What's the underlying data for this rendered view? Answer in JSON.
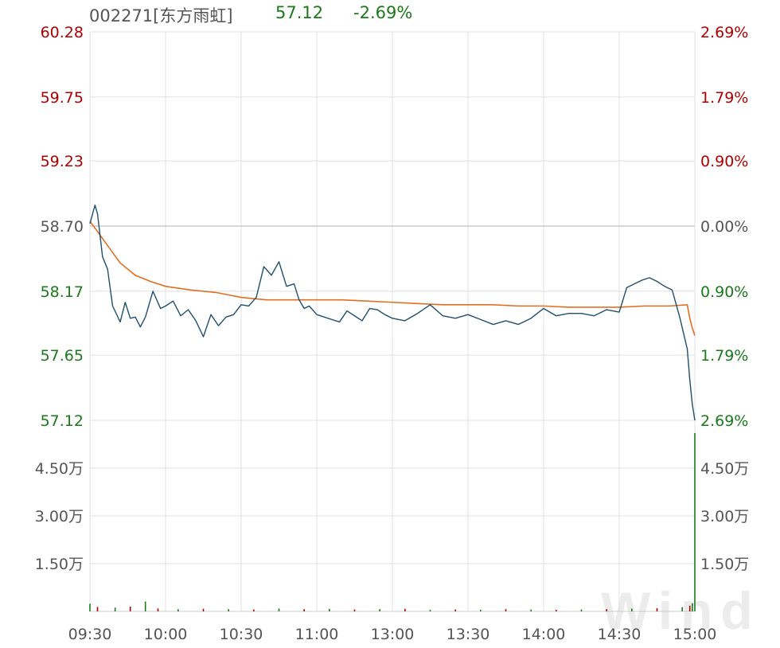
{
  "header": {
    "stock": "002271[东方雨虹]",
    "price": "57.12",
    "change_pct": "-2.69%"
  },
  "colors": {
    "up": "#b00000",
    "down": "#1a7a1a",
    "neutral": "#555555",
    "price_line": "#1f4f6b",
    "avg_line": "#e07020",
    "grid": "#e0e0e0",
    "baseline": "#c8c8c8"
  },
  "watermark": "Wind",
  "chart_data": {
    "type": "line",
    "title": "",
    "x_ticks": [
      "09:30",
      "10:00",
      "10:30",
      "11:00",
      "13:00",
      "13:30",
      "14:00",
      "14:30",
      "15:00"
    ],
    "price_axis": {
      "ticks": [
        "60.28",
        "59.75",
        "59.23",
        "58.70",
        "58.17",
        "57.65",
        "57.12"
      ],
      "tick_values": [
        60.28,
        59.75,
        59.23,
        58.7,
        58.17,
        57.65,
        57.12
      ],
      "ylim": [
        57.12,
        60.28
      ],
      "prev_close": 58.7
    },
    "pct_axis": {
      "ticks": [
        "2.69%",
        "1.79%",
        "0.90%",
        "0.00%",
        "0.90%",
        "1.79%",
        "2.69%"
      ]
    },
    "volume_axis": {
      "ticks": [
        "4.50万",
        "3.00万",
        "1.50万"
      ],
      "tick_values": [
        45000,
        30000,
        15000
      ],
      "ylim": [
        0,
        60000
      ]
    },
    "series": [
      {
        "key": "price",
        "x": [
          "09:30",
          "09:32",
          "09:33",
          "09:35",
          "09:37",
          "09:39",
          "09:42",
          "09:44",
          "09:46",
          "09:48",
          "09:50",
          "09:52",
          "09:55",
          "09:58",
          "10:00",
          "10:03",
          "10:06",
          "10:09",
          "10:12",
          "10:15",
          "10:18",
          "10:21",
          "10:24",
          "10:27",
          "10:30",
          "10:33",
          "10:36",
          "10:39",
          "10:42",
          "10:45",
          "10:48",
          "10:51",
          "10:53",
          "10:55",
          "10:57",
          "11:00",
          "11:03",
          "11:06",
          "11:09",
          "11:12",
          "11:15",
          "11:18",
          "11:21",
          "11:24",
          "11:27",
          "11:30",
          "13:05",
          "13:10",
          "13:15",
          "13:20",
          "13:25",
          "13:30",
          "13:35",
          "13:40",
          "13:45",
          "13:50",
          "13:55",
          "14:00",
          "14:05",
          "14:10",
          "14:15",
          "14:20",
          "14:25",
          "14:30",
          "14:33",
          "14:36",
          "14:39",
          "14:42",
          "14:45",
          "14:48",
          "14:51",
          "14:54",
          "14:57",
          "14:58",
          "14:59",
          "15:00"
        ],
        "y": [
          58.72,
          58.87,
          58.8,
          58.45,
          58.35,
          58.05,
          57.92,
          58.08,
          57.95,
          57.96,
          57.88,
          57.96,
          58.17,
          58.03,
          58.05,
          58.09,
          57.97,
          58.02,
          57.93,
          57.8,
          57.98,
          57.89,
          57.96,
          57.98,
          58.06,
          58.05,
          58.12,
          58.37,
          58.3,
          58.41,
          58.21,
          58.23,
          58.1,
          58.03,
          58.05,
          57.98,
          57.96,
          57.94,
          57.92,
          58.01,
          57.97,
          57.93,
          58.03,
          58.02,
          57.98,
          57.95,
          57.93,
          57.99,
          58.06,
          57.97,
          57.95,
          57.98,
          57.94,
          57.9,
          57.93,
          57.9,
          57.95,
          58.03,
          57.97,
          57.99,
          57.99,
          57.97,
          58.02,
          58.0,
          58.2,
          58.23,
          58.26,
          58.28,
          58.25,
          58.21,
          58.18,
          57.96,
          57.7,
          57.45,
          57.25,
          57.12
        ]
      },
      {
        "key": "average",
        "x": [
          "09:30",
          "09:36",
          "09:42",
          "09:48",
          "09:54",
          "10:00",
          "10:10",
          "10:20",
          "10:30",
          "10:40",
          "10:50",
          "11:00",
          "11:10",
          "11:20",
          "11:30",
          "13:10",
          "13:20",
          "13:30",
          "13:40",
          "13:50",
          "14:00",
          "14:10",
          "14:20",
          "14:30",
          "14:40",
          "14:50",
          "14:57",
          "14:58",
          "14:59",
          "15:00"
        ],
        "y": [
          58.74,
          58.57,
          58.4,
          58.3,
          58.25,
          58.21,
          58.18,
          58.16,
          58.12,
          58.1,
          58.1,
          58.1,
          58.1,
          58.09,
          58.08,
          58.07,
          58.06,
          58.06,
          58.06,
          58.05,
          58.05,
          58.04,
          58.04,
          58.04,
          58.05,
          58.05,
          58.06,
          57.95,
          57.87,
          57.81
        ]
      },
      {
        "key": "volume",
        "x": [
          "09:30",
          "09:33",
          "09:40",
          "09:46",
          "09:52",
          "09:57",
          "10:05",
          "10:15",
          "10:25",
          "10:35",
          "10:45",
          "10:55",
          "11:05",
          "11:15",
          "11:25",
          "13:05",
          "13:15",
          "13:25",
          "13:35",
          "13:45",
          "13:55",
          "14:05",
          "14:15",
          "14:25",
          "14:35",
          "14:45",
          "14:55",
          "14:58",
          "14:59",
          "15:00"
        ],
        "y": [
          2400,
          1400,
          1200,
          1500,
          3100,
          900,
          700,
          800,
          700,
          600,
          900,
          700,
          800,
          600,
          700,
          800,
          500,
          600,
          500,
          700,
          600,
          500,
          600,
          700,
          900,
          1000,
          1300,
          1800,
          2600,
          56000
        ]
      }
    ],
    "grid": true
  }
}
